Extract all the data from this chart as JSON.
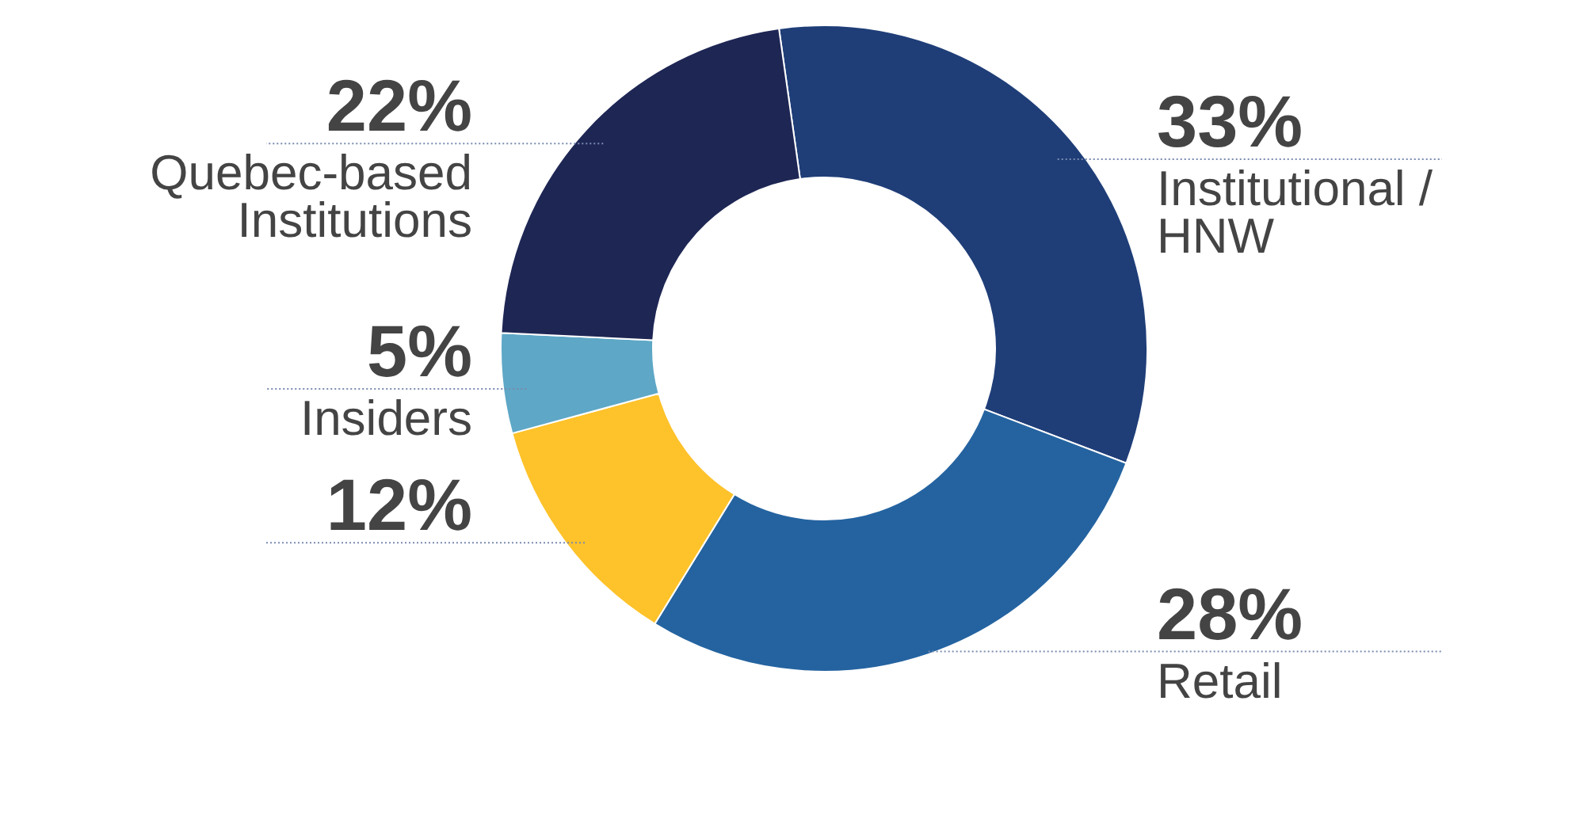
{
  "chart_data": {
    "type": "donut",
    "categories": [
      "Institutional / HNW",
      "Retail",
      null,
      "Insiders",
      "Quebec-based Institutions"
    ],
    "values": [
      33,
      28,
      12,
      5,
      22
    ],
    "value_labels": [
      "33%",
      "28%",
      "12%",
      "5%",
      "22%"
    ],
    "colors": [
      "#1f3e78",
      "#2463a0",
      "#fec22a",
      "#5ea7c6",
      "#1e2654"
    ]
  }
}
